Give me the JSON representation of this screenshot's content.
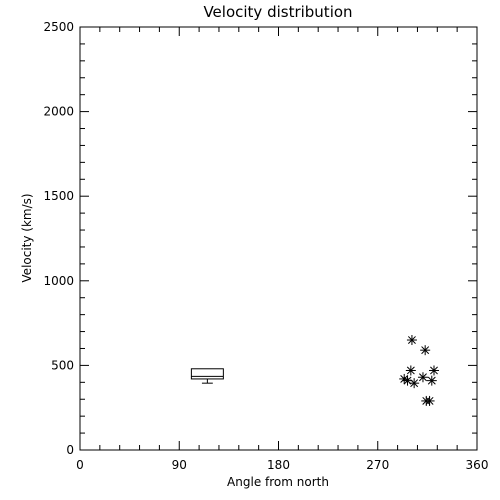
{
  "chart_data": {
    "type": "scatter",
    "title": "Velocity distribution",
    "xlabel": "Angle from north",
    "ylabel": "Velocity (km/s)",
    "xlim": [
      0,
      360
    ],
    "ylim": [
      0,
      2500
    ],
    "xticks": [
      0,
      90,
      180,
      270,
      360
    ],
    "yticks": [
      0,
      500,
      1000,
      1500,
      2000,
      2500
    ],
    "grid": false,
    "box": {
      "x_range": [
        101,
        130
      ],
      "whisker_low": 395,
      "q1": 420,
      "median": 435,
      "q3": 480,
      "whisker_high": 480
    },
    "points": [
      {
        "x": 301,
        "y": 650
      },
      {
        "x": 313,
        "y": 590
      },
      {
        "x": 300,
        "y": 470
      },
      {
        "x": 321,
        "y": 470
      },
      {
        "x": 294,
        "y": 420
      },
      {
        "x": 297,
        "y": 410
      },
      {
        "x": 311,
        "y": 430
      },
      {
        "x": 319,
        "y": 410
      },
      {
        "x": 303,
        "y": 395
      },
      {
        "x": 314,
        "y": 290
      },
      {
        "x": 317,
        "y": 290
      }
    ]
  }
}
